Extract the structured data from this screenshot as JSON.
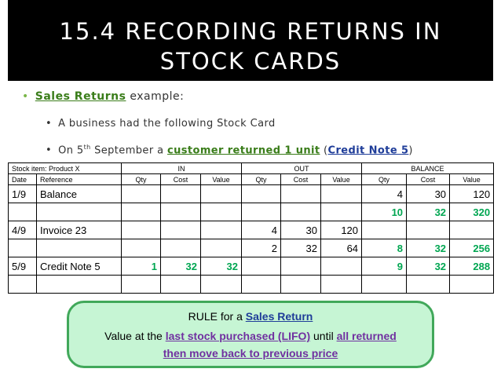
{
  "title": {
    "line1": "15.4 RECORDING RETURNS IN",
    "line2": "STOCK CARDS"
  },
  "bullets": {
    "b1_highlight": "Sales Returns",
    "b1_rest": " example:",
    "b2": "A business had the following Stock Card",
    "b3_prefix": "On 5",
    "b3_sup": "th",
    "b3_mid": " September a ",
    "b3_highlight": "customer returned 1 unit",
    "b3_open": " (",
    "b3_note": "Credit Note 5",
    "b3_close": ")"
  },
  "table": {
    "stock_item": "Stock item: Product X",
    "groups": [
      "IN",
      "OUT",
      "BALANCE"
    ],
    "columns": [
      "Date",
      "Reference",
      "Qty",
      "Cost",
      "Value",
      "Qty",
      "Cost",
      "Value",
      "Qty",
      "Cost",
      "Value"
    ],
    "rows": [
      [
        "1/9",
        "Balance",
        "",
        "",
        "",
        "",
        "",
        "",
        "4",
        "30",
        "120"
      ],
      [
        "",
        "",
        "",
        "",
        "",
        "",
        "",
        "",
        "10",
        "32",
        "320"
      ],
      [
        "4/9",
        "Invoice 23",
        "",
        "",
        "",
        "4",
        "30",
        "120",
        "",
        "",
        ""
      ],
      [
        "",
        "",
        "",
        "",
        "",
        "2",
        "32",
        "64",
        "8",
        "32",
        "256"
      ],
      [
        "5/9",
        "Credit Note 5",
        "1",
        "32",
        "32",
        "",
        "",
        "",
        "9",
        "32",
        "288"
      ],
      [
        "",
        "",
        "",
        "",
        "",
        "",
        "",
        "",
        "",
        "",
        ""
      ]
    ]
  },
  "rule": {
    "l1_prefix": "RULE for a ",
    "l1_highlight": "Sales Return",
    "l2_prefix": "Value at the ",
    "l2_highlight1": "last stock purchased (LIFO)",
    "l2_mid": " until ",
    "l2_highlight2": "all returned",
    "l2_highlight3": "then move back to previous price"
  },
  "colors": {
    "title_bg": "#000000",
    "green_values": "#00a651",
    "rule_bg": "#c6f5d4",
    "rule_border": "#41a85a"
  }
}
